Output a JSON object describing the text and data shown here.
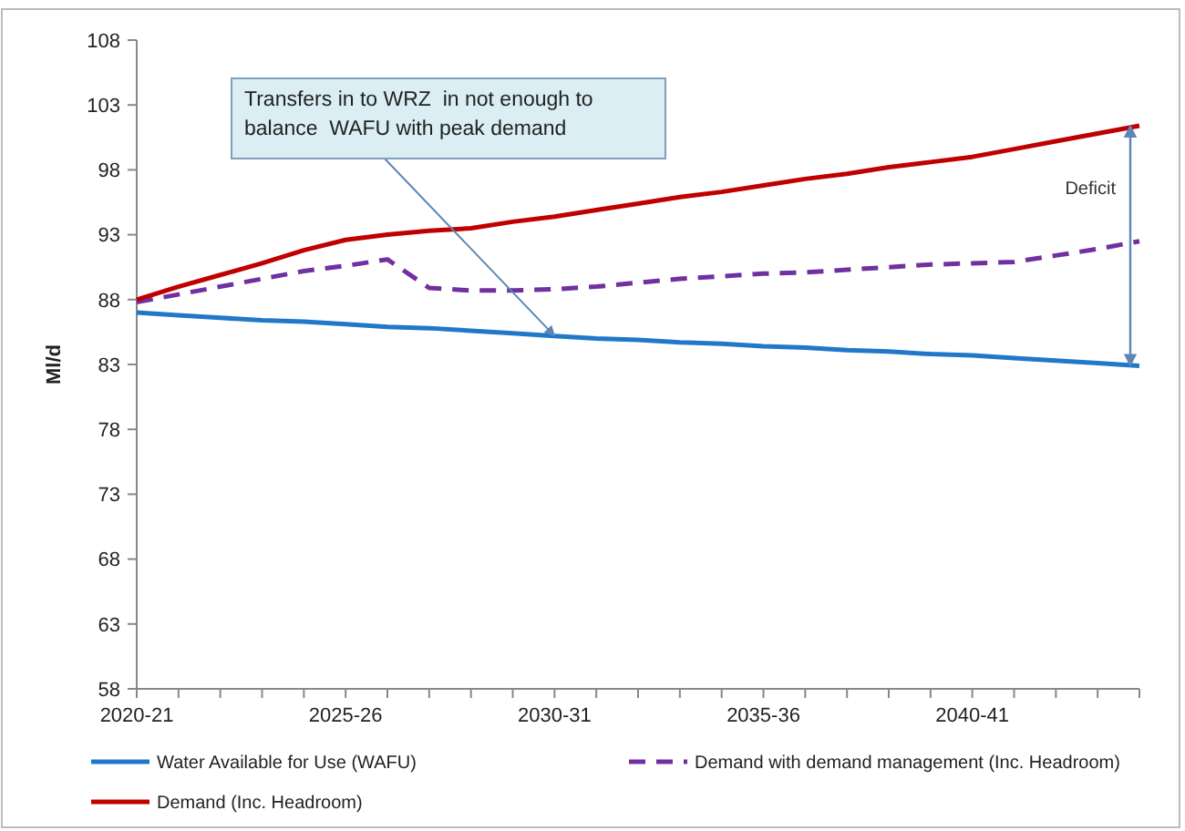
{
  "chart_data": {
    "type": "line",
    "ylabel": "Ml/d",
    "categories": [
      "2020-21",
      null,
      null,
      null,
      null,
      "2025-26",
      null,
      null,
      null,
      null,
      "2030-31",
      null,
      null,
      null,
      null,
      "2035-36",
      null,
      null,
      null,
      null,
      "2040-41",
      null,
      null,
      null,
      null
    ],
    "ylim": [
      58,
      108
    ],
    "yticks": [
      58,
      63,
      68,
      73,
      78,
      83,
      88,
      93,
      98,
      103,
      108
    ],
    "grid": false,
    "legend": "bottom",
    "marker": "none",
    "series": [
      {
        "name": "Water Available for Use (WAFU)",
        "color": "#1f78c8",
        "line_style": "solid",
        "values": [
          87.0,
          86.8,
          86.6,
          86.4,
          86.3,
          86.1,
          85.9,
          85.8,
          85.6,
          85.4,
          85.2,
          85.0,
          84.9,
          84.7,
          84.6,
          84.4,
          84.3,
          84.1,
          84.0,
          83.8,
          83.7,
          83.5,
          83.3,
          83.1,
          82.9
        ]
      },
      {
        "name": "Demand with demand management (Inc. Headroom)",
        "color": "#7030a0",
        "line_style": "dashed",
        "values": [
          87.8,
          88.4,
          89.0,
          89.6,
          90.2,
          90.6,
          91.1,
          88.9,
          88.7,
          88.7,
          88.8,
          89.0,
          89.3,
          89.6,
          89.8,
          90.0,
          90.1,
          90.3,
          90.5,
          90.7,
          90.8,
          90.9,
          91.4,
          91.9,
          92.5
        ]
      },
      {
        "name": "Demand (Inc. Headroom)",
        "color": "#c00000",
        "line_style": "solid",
        "values": [
          88.0,
          89.0,
          89.9,
          90.8,
          91.8,
          92.6,
          93.0,
          93.3,
          93.5,
          94.0,
          94.4,
          94.9,
          95.4,
          95.9,
          96.3,
          96.8,
          97.3,
          97.7,
          98.2,
          98.6,
          99.0,
          99.6,
          100.2,
          100.8,
          101.4
        ]
      }
    ],
    "annotations": [
      {
        "text": "Transfers in to WRZ  in not enough to balance  WAFU with peak demand",
        "x": "2030-31",
        "y": 85.2
      },
      "Deficit"
    ]
  }
}
